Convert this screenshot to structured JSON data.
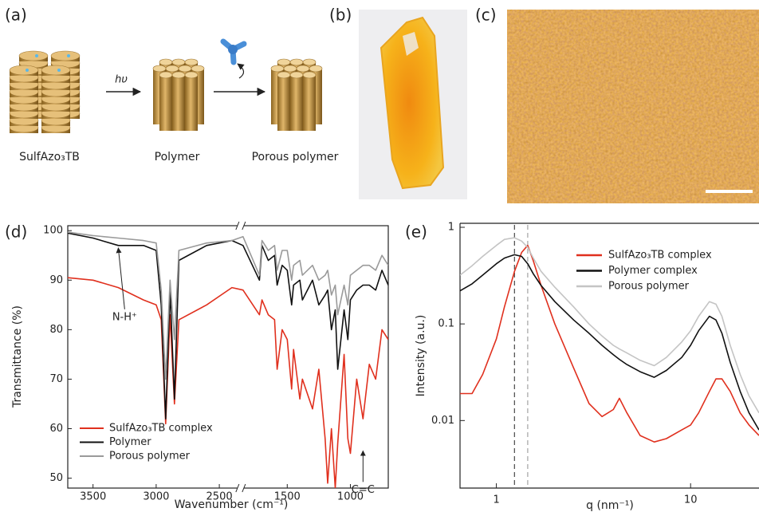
{
  "panels": [
    "(a)",
    "(b)",
    "(c)",
    "(d)",
    "(e)"
  ],
  "scheme": {
    "labels": [
      "SulfAzo₃TB",
      "Polymer",
      "Porous polymer"
    ],
    "light": "hυ"
  },
  "chart_data": [
    {
      "type": "line",
      "xlabel": "Wavenumber (cm⁻¹)",
      "ylabel": "Transmittance (%)",
      "xlim": [
        3700,
        700
      ],
      "xbreak": [
        2350,
        1850
      ],
      "ylim": [
        48,
        101
      ],
      "xticks": [
        3500,
        3000,
        2500,
        1500,
        1000
      ],
      "yticks": [
        50,
        60,
        70,
        80,
        90,
        100
      ],
      "legend": "lower left",
      "x": [
        3700,
        3500,
        3300,
        3100,
        3000,
        2960,
        2925,
        2890,
        2855,
        2820,
        2600,
        2400,
        1850,
        1720,
        1700,
        1650,
        1600,
        1580,
        1540,
        1500,
        1465,
        1450,
        1400,
        1380,
        1300,
        1250,
        1200,
        1180,
        1150,
        1120,
        1100,
        1050,
        1020,
        1000,
        950,
        900,
        850,
        800,
        750,
        700
      ],
      "series": [
        {
          "name": "SulfAzo₃TB complex",
          "color": "#e0301e",
          "values": [
            90.5,
            90,
            88.5,
            86,
            85,
            82,
            61,
            83,
            65,
            82,
            85,
            88.5,
            88,
            83,
            86,
            83,
            82,
            72,
            80,
            78,
            68,
            76,
            66,
            70,
            64,
            72,
            58,
            49,
            60,
            48,
            57,
            75,
            58,
            55,
            70,
            62,
            73,
            70,
            80,
            78
          ]
        },
        {
          "name": "Polymer",
          "color": "#111111",
          "values": [
            99.5,
            98.5,
            97,
            97,
            96,
            85,
            62,
            88,
            66,
            94,
            97,
            98,
            97,
            90,
            97,
            94,
            95,
            89,
            93,
            92,
            85,
            89,
            90,
            86,
            90,
            85,
            87,
            88,
            80,
            84,
            72,
            84,
            78,
            86,
            88,
            89,
            89,
            88,
            92,
            89
          ]
        },
        {
          "name": "Porous polymer",
          "color": "#9a9a9a",
          "values": [
            99.7,
            99,
            98.5,
            98,
            97.5,
            88,
            70,
            90,
            78,
            96,
            97.5,
            98,
            98.8,
            91,
            98,
            96,
            97,
            92,
            96,
            96,
            90,
            93,
            94,
            91,
            93,
            90,
            91,
            92,
            87,
            89,
            83,
            89,
            85,
            91,
            92,
            93,
            93,
            92,
            95,
            93
          ]
        }
      ],
      "annotations": [
        {
          "text": "N-H⁺",
          "x": 3300,
          "y": 97
        },
        {
          "text": "C=C",
          "x": 900,
          "y": 56
        }
      ]
    },
    {
      "type": "line",
      "xlabel": "q (nm⁻¹)",
      "ylabel": "Intensity (a.u.)",
      "xscale": "log",
      "yscale": "log",
      "xlim": [
        0.65,
        22.5
      ],
      "ylim": [
        0.002,
        1.1
      ],
      "xticks": [
        1,
        10
      ],
      "yticks": [
        0.01,
        0.1,
        1
      ],
      "legend": "upper right",
      "reference_lines": [
        {
          "x": 1.24,
          "color": "#555555"
        },
        {
          "x": 1.45,
          "color": "#aaaaaa"
        }
      ],
      "x": [
        0.65,
        0.75,
        0.85,
        1.0,
        1.1,
        1.24,
        1.35,
        1.45,
        1.55,
        1.7,
        2.0,
        2.5,
        3.0,
        3.5,
        4.0,
        4.3,
        4.7,
        5.5,
        6.5,
        7.5,
        9,
        10,
        11,
        12.5,
        13.5,
        14.5,
        16,
        18,
        20,
        22.5
      ],
      "series": [
        {
          "name": "SulfAzo₃TB complex",
          "color": "#e0301e",
          "values": [
            0.019,
            0.019,
            0.03,
            0.07,
            0.15,
            0.35,
            0.55,
            0.65,
            0.45,
            0.25,
            0.1,
            0.035,
            0.015,
            0.011,
            0.013,
            0.017,
            0.012,
            0.007,
            0.006,
            0.0065,
            0.008,
            0.009,
            0.012,
            0.02,
            0.027,
            0.027,
            0.02,
            0.012,
            0.009,
            0.007
          ]
        },
        {
          "name": "Polymer complex",
          "color": "#111111",
          "values": [
            0.22,
            0.26,
            0.32,
            0.42,
            0.48,
            0.52,
            0.5,
            0.42,
            0.33,
            0.25,
            0.17,
            0.11,
            0.08,
            0.06,
            0.048,
            0.043,
            0.038,
            0.032,
            0.028,
            0.033,
            0.045,
            0.06,
            0.085,
            0.12,
            0.11,
            0.08,
            0.04,
            0.02,
            0.012,
            0.008
          ]
        },
        {
          "name": "Porous polymer",
          "color": "#c4c4c4",
          "values": [
            0.32,
            0.4,
            0.5,
            0.65,
            0.75,
            0.78,
            0.72,
            0.62,
            0.48,
            0.35,
            0.24,
            0.15,
            0.1,
            0.075,
            0.06,
            0.055,
            0.05,
            0.042,
            0.037,
            0.045,
            0.065,
            0.085,
            0.12,
            0.17,
            0.16,
            0.12,
            0.06,
            0.03,
            0.018,
            0.012
          ]
        }
      ]
    }
  ]
}
